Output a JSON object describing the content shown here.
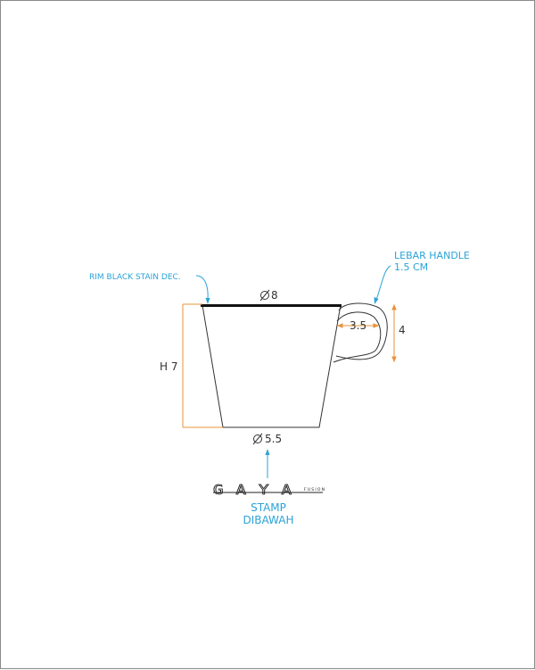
{
  "labels": {
    "rim_note": "RIM BLACK STAIN DEC.",
    "handle_note_line1": "LEBAR HANDLE",
    "handle_note_line2": "1.5 CM",
    "top_diameter": "8",
    "bottom_diameter": "5.5",
    "height": "H 7",
    "handle_width": "3.5",
    "handle_height": "4",
    "stamp_line1": "STAMP",
    "stamp_line2": "DIBAWAH",
    "logo_text": "GAYA",
    "logo_sub": "FUSION"
  },
  "colors": {
    "annotation": "#2aa3d8",
    "dimension": "#e8933a",
    "outline": "#333333",
    "rim": "#111111"
  }
}
